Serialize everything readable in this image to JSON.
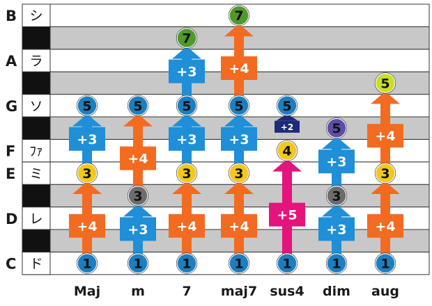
{
  "notes": [
    {
      "letter": "C",
      "kana": "ド",
      "black": false
    },
    {
      "letter": "",
      "kana": "",
      "black": true
    },
    {
      "letter": "D",
      "kana": "レ",
      "black": false
    },
    {
      "letter": "",
      "kana": "",
      "black": true
    },
    {
      "letter": "E",
      "kana": "ミ",
      "black": false
    },
    {
      "letter": "F",
      "kana": "ﾌｧ",
      "black": false
    },
    {
      "letter": "",
      "kana": "",
      "black": true
    },
    {
      "letter": "G",
      "kana": "ソ",
      "black": false
    },
    {
      "letter": "",
      "kana": "",
      "black": true
    },
    {
      "letter": "A",
      "kana": "ラ",
      "black": false
    },
    {
      "letter": "",
      "kana": "",
      "black": true
    },
    {
      "letter": "B",
      "kana": "シ",
      "black": false
    }
  ],
  "colors": {
    "plus4": "#f26b21",
    "plus3": "#1f8fd8",
    "plus5": "#e5137c",
    "plus2": "#1e2a78",
    "circle_root": "#1b7fc0",
    "circle_major3": "#f2c81b",
    "circle_minor3": "#6d6d6d",
    "circle_fifth": "#1b7fc0",
    "circle_dim5": "#5d4fa8",
    "circle_aug5": "#c9e021",
    "circle_fourth": "#f2c81b",
    "circle_seventh": "#4f9a2a",
    "grey_row": "#c8c8c8"
  },
  "chords": [
    {
      "name": "Maj",
      "circles": [
        {
          "row": 0,
          "label": "1",
          "color": "circle_root"
        },
        {
          "row": 4,
          "label": "3",
          "color": "circle_major3"
        },
        {
          "row": 7,
          "label": "5",
          "color": "circle_fifth"
        }
      ],
      "arrows": [
        {
          "from": 0,
          "to": 4,
          "label": "+4",
          "color": "plus4"
        },
        {
          "from": 4,
          "to": 7,
          "label": "+3",
          "color": "plus3"
        }
      ]
    },
    {
      "name": "m",
      "circles": [
        {
          "row": 0,
          "label": "1",
          "color": "circle_root"
        },
        {
          "row": 3,
          "label": "3",
          "color": "circle_minor3"
        },
        {
          "row": 7,
          "label": "5",
          "color": "circle_fifth"
        }
      ],
      "arrows": [
        {
          "from": 0,
          "to": 3,
          "label": "+3",
          "color": "plus3"
        },
        {
          "from": 3,
          "to": 7,
          "label": "+4",
          "color": "plus4"
        }
      ]
    },
    {
      "name": "7",
      "circles": [
        {
          "row": 0,
          "label": "1",
          "color": "circle_root"
        },
        {
          "row": 4,
          "label": "3",
          "color": "circle_major3"
        },
        {
          "row": 7,
          "label": "5",
          "color": "circle_fifth"
        },
        {
          "row": 10,
          "label": "7",
          "color": "circle_seventh"
        }
      ],
      "arrows": [
        {
          "from": 0,
          "to": 4,
          "label": "+4",
          "color": "plus4"
        },
        {
          "from": 4,
          "to": 7,
          "label": "+3",
          "color": "plus3"
        },
        {
          "from": 7,
          "to": 10,
          "label": "+3",
          "color": "plus3"
        }
      ]
    },
    {
      "name": "maj7",
      "circles": [
        {
          "row": 0,
          "label": "1",
          "color": "circle_root"
        },
        {
          "row": 4,
          "label": "3",
          "color": "circle_major3"
        },
        {
          "row": 7,
          "label": "5",
          "color": "circle_fifth"
        },
        {
          "row": 11,
          "label": "7",
          "color": "circle_seventh"
        }
      ],
      "arrows": [
        {
          "from": 0,
          "to": 4,
          "label": "+4",
          "color": "plus4"
        },
        {
          "from": 4,
          "to": 7,
          "label": "+3",
          "color": "plus3"
        },
        {
          "from": 7,
          "to": 11,
          "label": "+4",
          "color": "plus4"
        }
      ]
    },
    {
      "name": "sus4",
      "circles": [
        {
          "row": 0,
          "label": "1",
          "color": "circle_root"
        },
        {
          "row": 5,
          "label": "4",
          "color": "circle_fourth"
        },
        {
          "row": 7,
          "label": "5",
          "color": "circle_fifth"
        }
      ],
      "arrows": [
        {
          "from": 0,
          "to": 5,
          "label": "+5",
          "color": "plus5"
        },
        {
          "from": 5,
          "to": 7,
          "label": "+2",
          "color": "plus2"
        }
      ]
    },
    {
      "name": "dim",
      "circles": [
        {
          "row": 0,
          "label": "1",
          "color": "circle_root"
        },
        {
          "row": 3,
          "label": "3",
          "color": "circle_minor3"
        },
        {
          "row": 6,
          "label": "5",
          "color": "circle_dim5"
        }
      ],
      "arrows": [
        {
          "from": 0,
          "to": 3,
          "label": "+3",
          "color": "plus3"
        },
        {
          "from": 3,
          "to": 6,
          "label": "+3",
          "color": "plus3"
        }
      ]
    },
    {
      "name": "aug",
      "circles": [
        {
          "row": 0,
          "label": "1",
          "color": "circle_root"
        },
        {
          "row": 4,
          "label": "3",
          "color": "circle_major3"
        },
        {
          "row": 8,
          "label": "5",
          "color": "circle_aug5"
        }
      ],
      "arrows": [
        {
          "from": 0,
          "to": 4,
          "label": "+4",
          "color": "plus4"
        },
        {
          "from": 4,
          "to": 8,
          "label": "+4",
          "color": "plus4"
        }
      ]
    }
  ]
}
